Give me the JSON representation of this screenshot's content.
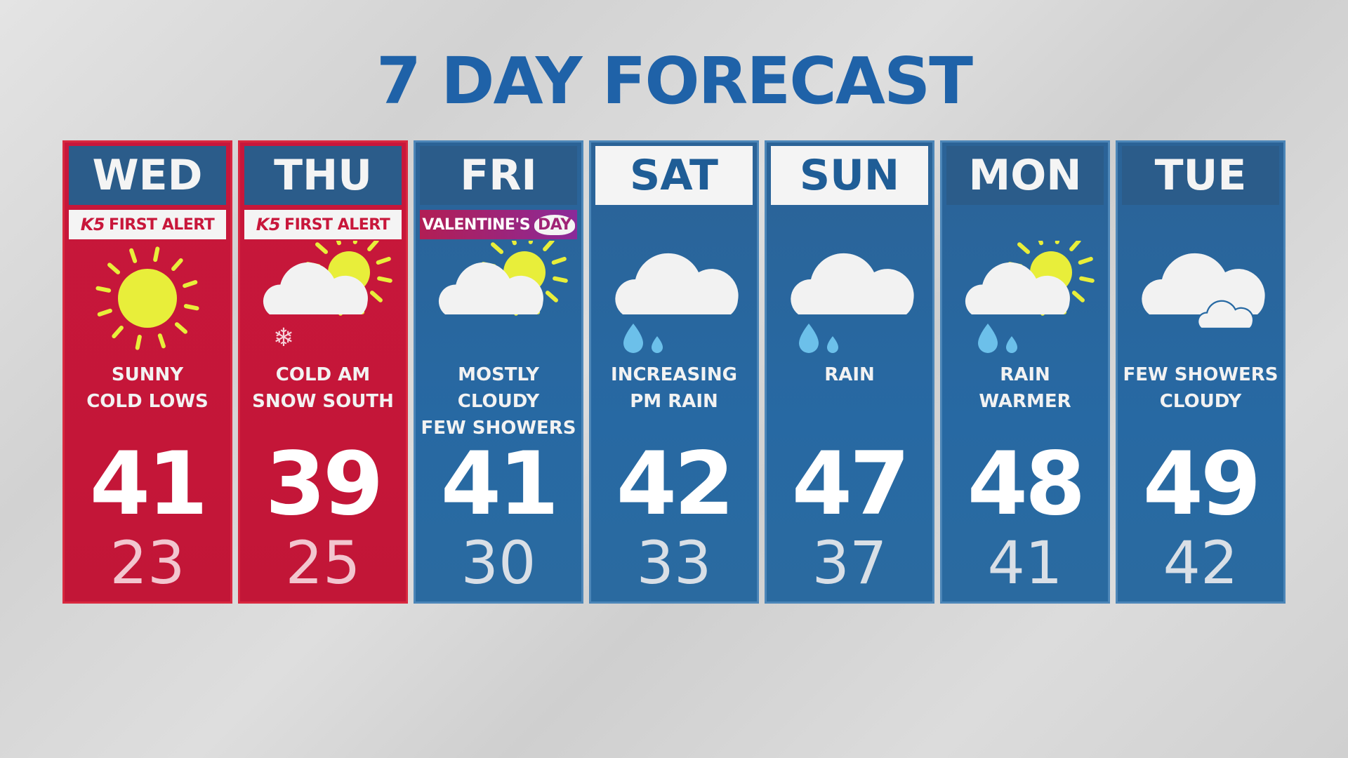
{
  "title": "7 DAY FORECAST",
  "colors": {
    "alert_red": "#c8173b",
    "forecast_blue": "#2769a3",
    "header_blue": "#2b5c8a",
    "title_blue": "#1f62a8"
  },
  "days": [
    {
      "day": "WED",
      "style": "alert",
      "badge": {
        "type": "first-alert",
        "logo": "K5",
        "text": "FIRST ALERT"
      },
      "icon": "sun-icon",
      "desc1": "SUNNY",
      "desc2": "COLD LOWS",
      "high": "41",
      "low": "23"
    },
    {
      "day": "THU",
      "style": "alert",
      "badge": {
        "type": "first-alert",
        "logo": "K5",
        "text": "FIRST ALERT"
      },
      "icon": "partly-cloudy-snow-icon",
      "desc1": "COLD AM",
      "desc2": "SNOW SOUTH",
      "high": "39",
      "low": "25"
    },
    {
      "day": "FRI",
      "style": "normal",
      "badge": {
        "type": "valentine",
        "text": "VALENTINE'S",
        "heart": "DAY"
      },
      "icon": "partly-cloudy-icon",
      "desc1": "MOSTLY CLOUDY",
      "desc2": "FEW SHOWERS",
      "high": "41",
      "low": "30"
    },
    {
      "day": "SAT",
      "style": "white",
      "icon": "cloud-rain-icon",
      "desc1": "INCREASING",
      "desc2": "PM RAIN",
      "high": "42",
      "low": "33"
    },
    {
      "day": "SUN",
      "style": "white",
      "icon": "cloud-rain-icon",
      "desc1": "RAIN",
      "desc2": "",
      "high": "47",
      "low": "37"
    },
    {
      "day": "MON",
      "style": "normal",
      "icon": "partly-cloudy-rain-icon",
      "desc1": "RAIN",
      "desc2": "WARMER",
      "high": "48",
      "low": "41"
    },
    {
      "day": "TUE",
      "style": "normal",
      "icon": "cloudy-icon",
      "desc1": "FEW SHOWERS",
      "desc2": "CLOUDY",
      "high": "49",
      "low": "42"
    }
  ]
}
